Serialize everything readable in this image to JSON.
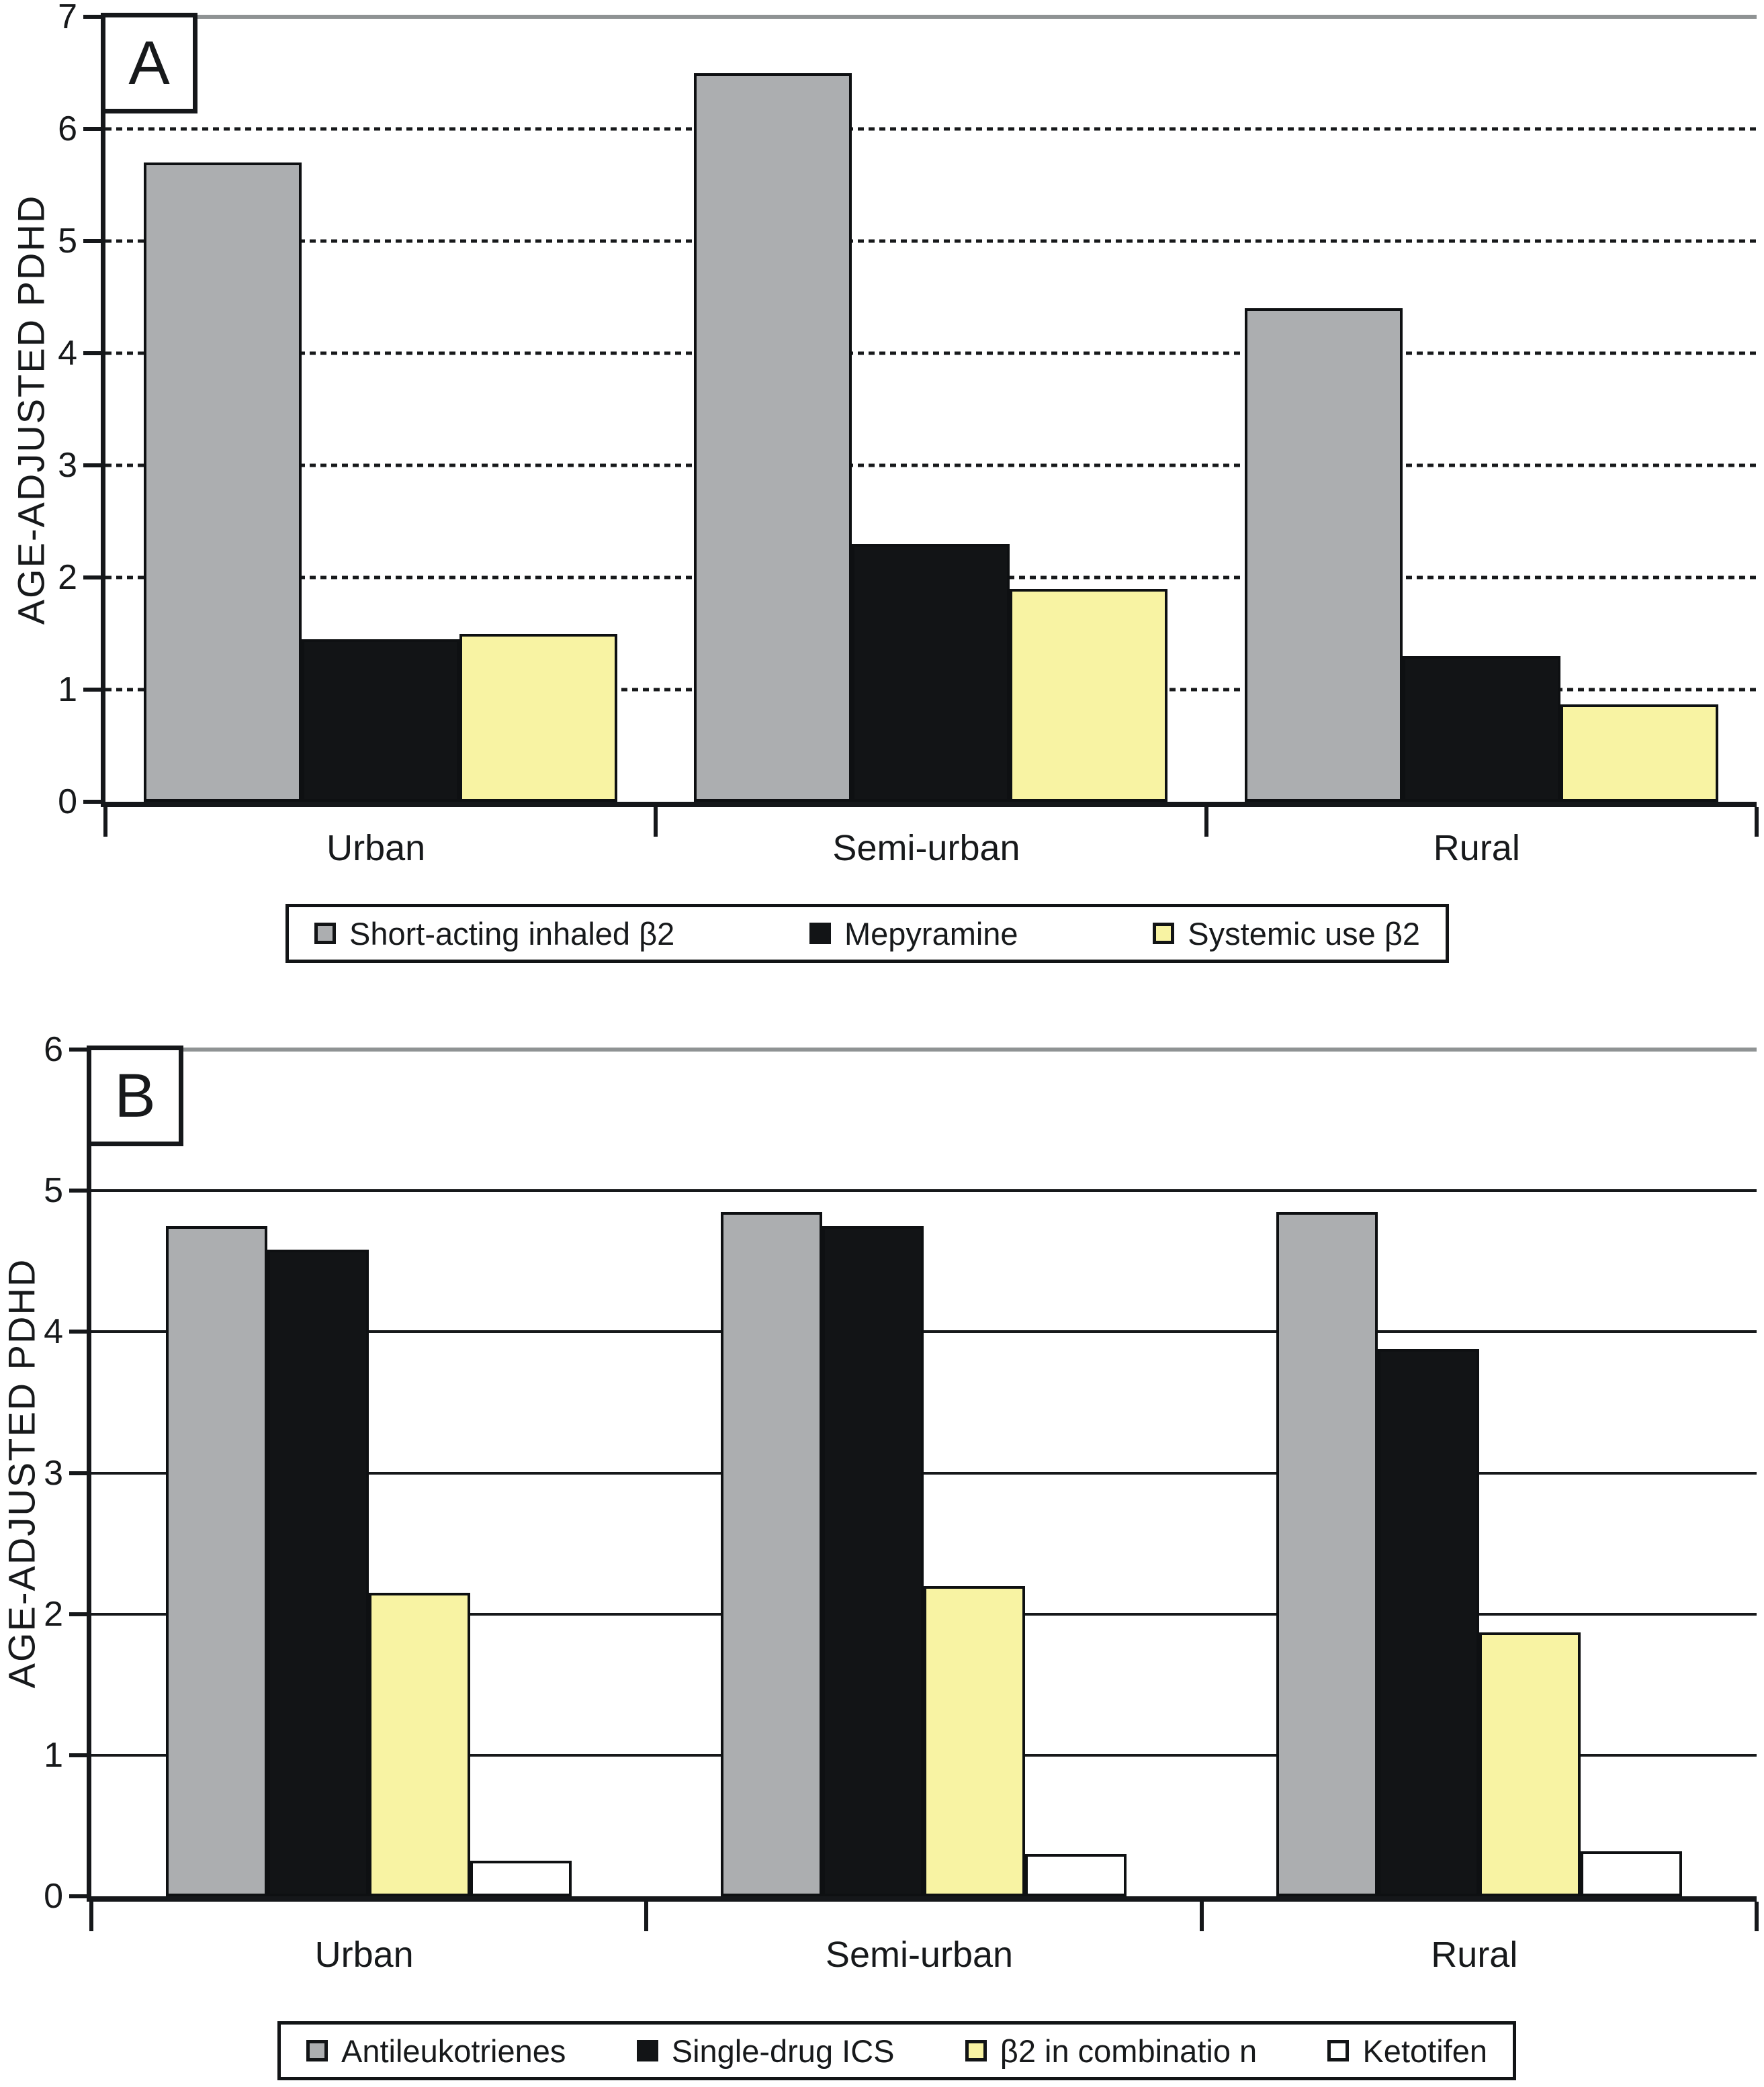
{
  "chart_data": [
    {
      "id": "a",
      "type": "bar",
      "panel_letter": "A",
      "ylabel": "AGE-ADJUSTED PDHD",
      "ylim": [
        0,
        7
      ],
      "yticks": [
        0,
        1,
        2,
        3,
        4,
        5,
        6,
        7
      ],
      "grid": "dotted",
      "legend_position": "bottom",
      "categories": [
        "Urban",
        "Semi-urban",
        "Rural"
      ],
      "series": [
        {
          "name": "Short-acting inhaled β2",
          "color": "#ACAEB0",
          "values": [
            5.7,
            6.5,
            4.4
          ]
        },
        {
          "name": "Mepyramine",
          "color": "#121416",
          "values": [
            1.45,
            2.3,
            1.3
          ]
        },
        {
          "name": "Systemic use β2",
          "color": "#F8F3A3",
          "values": [
            1.5,
            1.9,
            0.87
          ]
        }
      ]
    },
    {
      "id": "b",
      "type": "bar",
      "panel_letter": "B",
      "ylabel": "AGE-ADJUSTED PDHD",
      "ylim": [
        0,
        6
      ],
      "yticks": [
        0,
        1,
        2,
        3,
        4,
        5,
        6
      ],
      "grid": "solid",
      "legend_position": "bottom",
      "categories": [
        "Urban",
        "Semi-urban",
        "Rural"
      ],
      "series": [
        {
          "name": "Antileukotrienes",
          "color": "#ACAEB0",
          "values": [
            4.75,
            4.85,
            4.85
          ]
        },
        {
          "name": "Single-drug ICS",
          "color": "#121416",
          "values": [
            4.58,
            4.75,
            3.88
          ]
        },
        {
          "name": "β2 in combinatio n",
          "color": "#F8F3A3",
          "values": [
            2.15,
            2.2,
            1.87
          ]
        },
        {
          "name": "Ketotifen",
          "color": "#FFFFFF",
          "values": [
            0.25,
            0.3,
            0.32
          ]
        }
      ]
    }
  ]
}
